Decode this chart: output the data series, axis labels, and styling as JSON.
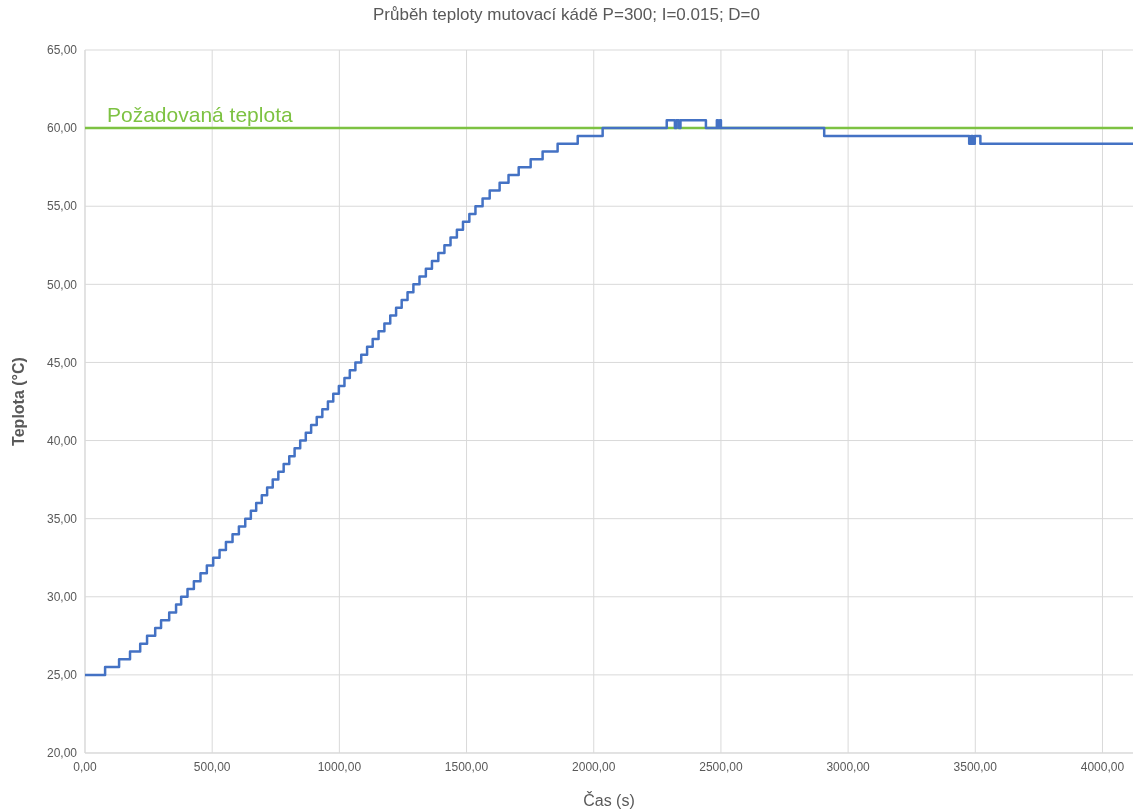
{
  "chart_data": {
    "type": "step",
    "title": "Průběh teploty mutovací kádě P=300; I=0.015; D=0",
    "xlabel": "Čas (s)",
    "ylabel": "Teplota (°C)",
    "xlim": [
      0,
      4120
    ],
    "ylim": [
      20,
      65
    ],
    "xticks": [
      {
        "value": 0,
        "label": "0,00"
      },
      {
        "value": 500,
        "label": "500,00"
      },
      {
        "value": 1000,
        "label": "1000,00"
      },
      {
        "value": 1500,
        "label": "1500,00"
      },
      {
        "value": 2000,
        "label": "2000,00"
      },
      {
        "value": 2500,
        "label": "2500,00"
      },
      {
        "value": 3000,
        "label": "3000,00"
      },
      {
        "value": 3500,
        "label": "3500,00"
      },
      {
        "value": 4000,
        "label": "4000,00"
      }
    ],
    "yticks": [
      {
        "value": 20,
        "label": "20,00"
      },
      {
        "value": 25,
        "label": "25,00"
      },
      {
        "value": 30,
        "label": "30,00"
      },
      {
        "value": 35,
        "label": "35,00"
      },
      {
        "value": 40,
        "label": "40,00"
      },
      {
        "value": 45,
        "label": "45,00"
      },
      {
        "value": 50,
        "label": "50,00"
      },
      {
        "value": 55,
        "label": "55,00"
      },
      {
        "value": 60,
        "label": "60,00"
      },
      {
        "value": 65,
        "label": "65,00"
      }
    ],
    "grid": true,
    "ref_lines": [
      {
        "axis": "y",
        "value": 60,
        "label": "Požadovaná teplota",
        "color": "#7dc242"
      }
    ],
    "series": [
      {
        "color": "#4472c4",
        "x": [
          0,
          79,
          134,
          177,
          217,
          244,
          276,
          299,
          331,
          358,
          378,
          403,
          428,
          454,
          479,
          504,
          529,
          554,
          580,
          605,
          630,
          652,
          673,
          695,
          716,
          738,
          760,
          781,
          803,
          824,
          846,
          868,
          889,
          911,
          933,
          955,
          976,
          998,
          1020,
          1041,
          1063,
          1086,
          1109,
          1131,
          1154,
          1177,
          1200,
          1223,
          1245,
          1268,
          1291,
          1315,
          1340,
          1364,
          1389,
          1413,
          1437,
          1462,
          1486,
          1511,
          1535,
          1563,
          1591,
          1630,
          1665,
          1705,
          1752,
          1799,
          1858,
          1937,
          2035,
          2287,
          2319,
          2325,
          2335,
          2341,
          2441,
          2484,
          2488,
          2496,
          2500,
          2906,
          3476,
          3484,
          3490,
          3498,
          3520,
          4120
        ],
        "values": [
          25,
          25.5,
          26,
          26.5,
          27,
          27.5,
          28,
          28.5,
          29,
          29.5,
          30,
          30.5,
          31,
          31.5,
          32,
          32.5,
          33,
          33.5,
          34,
          34.5,
          35,
          35.5,
          36,
          36.5,
          37,
          37.5,
          38,
          38.5,
          39,
          39.5,
          40,
          40.5,
          41,
          41.5,
          42,
          42.5,
          43,
          43.5,
          44,
          44.5,
          45,
          45.5,
          46,
          46.5,
          47,
          47.5,
          48,
          48.5,
          49,
          49.5,
          50,
          50.5,
          51,
          51.5,
          52,
          52.5,
          53,
          53.5,
          54,
          54.5,
          55,
          55.5,
          56,
          56.5,
          57,
          57.5,
          58,
          58.5,
          59,
          59.5,
          60,
          60.5,
          60,
          60.5,
          60,
          60.5,
          60,
          60.5,
          60,
          60.5,
          60,
          59.5,
          59,
          59.5,
          59,
          59.5,
          59,
          59
        ]
      }
    ]
  }
}
